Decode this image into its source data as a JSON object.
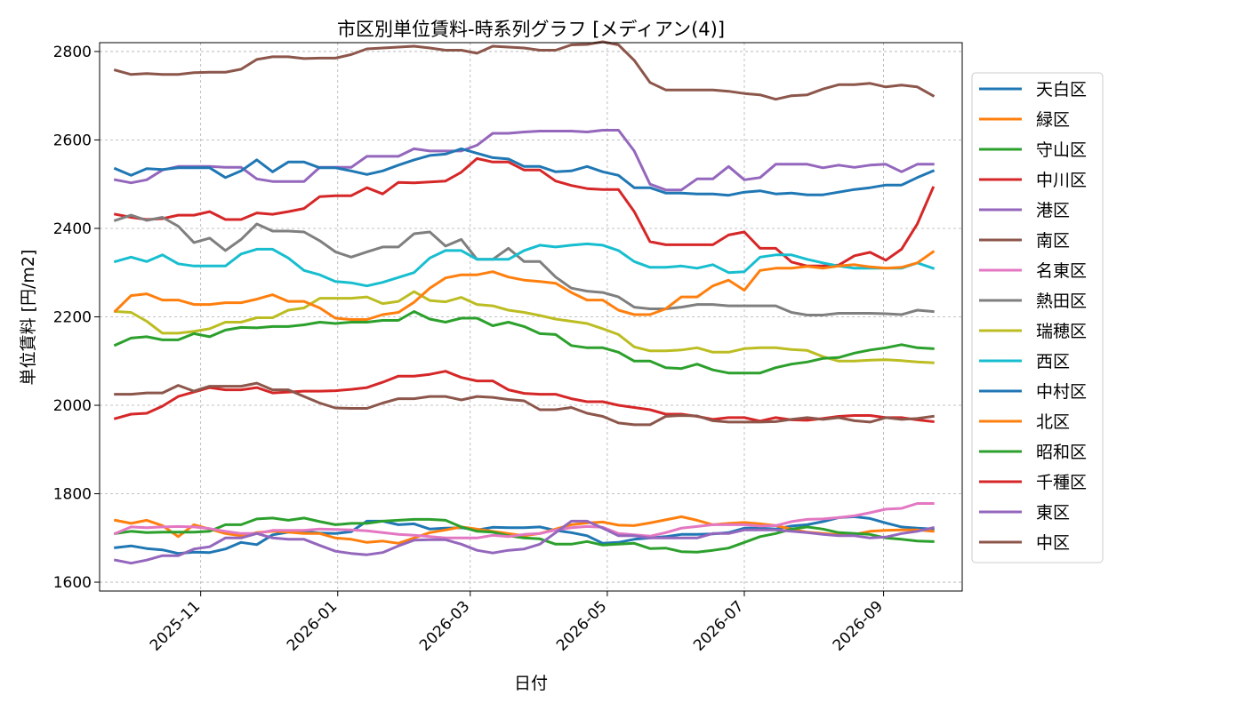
{
  "chart_data": {
    "type": "line",
    "title": "市区別単位賃料-時系列グラフ [メディアン(4)]",
    "xlabel": "日付",
    "ylabel": "単位賃料 [円/m2]",
    "ylim": [
      1580,
      2820
    ],
    "yticks": [
      1600,
      1800,
      2000,
      2200,
      2400,
      2600,
      2800
    ],
    "xlim": [
      "2025-09-17",
      "2026-10-06"
    ],
    "xticks": [
      "2025-11-01",
      "2026-01-01",
      "2026-03-01",
      "2026-05-01",
      "2026-07-01",
      "2026-09-01"
    ],
    "xtick_labels": [
      "2025-11",
      "2026-01",
      "2026-03",
      "2026-05",
      "2026-07",
      "2026-09"
    ],
    "grid": true,
    "legend": "outside-right",
    "x": [
      "2025-09-24",
      "2025-10-01",
      "2025-10-08",
      "2025-10-15",
      "2025-10-22",
      "2025-10-29",
      "2025-11-05",
      "2025-11-12",
      "2025-11-19",
      "2025-11-26",
      "2025-12-03",
      "2025-12-10",
      "2025-12-17",
      "2025-12-24",
      "2025-12-31",
      "2026-01-07",
      "2026-01-14",
      "2026-01-21",
      "2026-01-28",
      "2026-02-04",
      "2026-02-11",
      "2026-02-18",
      "2026-02-25",
      "2026-03-04",
      "2026-03-11",
      "2026-03-18",
      "2026-03-25",
      "2026-04-01",
      "2026-04-08",
      "2026-04-15",
      "2026-04-22",
      "2026-04-29",
      "2026-05-06",
      "2026-05-13",
      "2026-05-20",
      "2026-05-27",
      "2026-06-03",
      "2026-06-10",
      "2026-06-17",
      "2026-06-24",
      "2026-07-01",
      "2026-07-08",
      "2026-07-15",
      "2026-07-22",
      "2026-07-29",
      "2026-08-05",
      "2026-08-12",
      "2026-08-19",
      "2026-08-26",
      "2026-09-02",
      "2026-09-09",
      "2026-09-16",
      "2026-09-23"
    ],
    "series": [
      {
        "name": "天白区",
        "color": "#1f77b4",
        "values": [
          1678,
          1682,
          1676,
          1673,
          1665,
          1668,
          1667,
          1675,
          1690,
          1685,
          1707,
          1713,
          1714,
          1711,
          1710,
          1714,
          1738,
          1738,
          1730,
          1732,
          1720,
          1722,
          1723,
          1718,
          1724,
          1723,
          1723,
          1725,
          1717,
          1712,
          1705,
          1688,
          1690,
          1697,
          1700,
          1703,
          1708,
          1708,
          1709,
          1712,
          1722,
          1722,
          1720,
          1727,
          1730,
          1737,
          1746,
          1748,
          1744,
          1734,
          1725,
          1722,
          1720
        ]
      },
      {
        "name": "緑区",
        "color": "#ff7f0e",
        "values": [
          1740,
          1733,
          1740,
          1728,
          1703,
          1730,
          1720,
          1710,
          1705,
          1712,
          1715,
          1713,
          1710,
          1710,
          1700,
          1697,
          1690,
          1693,
          1688,
          1700,
          1712,
          1718,
          1725,
          1720,
          1715,
          1710,
          1705,
          1710,
          1720,
          1730,
          1734,
          1736,
          1729,
          1728,
          1734,
          1741,
          1748,
          1740,
          1730,
          1733,
          1735,
          1732,
          1728,
          1720,
          1713,
          1710,
          1707,
          1708,
          1715,
          1717,
          1718,
          1718,
          1715
        ]
      },
      {
        "name": "守山区",
        "color": "#2ca02c",
        "values": [
          1710,
          1715,
          1712,
          1713,
          1713,
          1713,
          1715,
          1730,
          1730,
          1743,
          1745,
          1740,
          1745,
          1737,
          1730,
          1733,
          1733,
          1738,
          1740,
          1742,
          1742,
          1740,
          1725,
          1715,
          1713,
          1705,
          1700,
          1698,
          1686,
          1686,
          1692,
          1684,
          1686,
          1688,
          1676,
          1677,
          1669,
          1668,
          1672,
          1677,
          1690,
          1703,
          1710,
          1720,
          1725,
          1720,
          1712,
          1710,
          1708,
          1700,
          1697,
          1693,
          1692
        ]
      },
      {
        "name": "中川区",
        "color": "#d62728",
        "values": [
          2432,
          2425,
          2420,
          2422,
          2430,
          2430,
          2438,
          2420,
          2420,
          2435,
          2432,
          2438,
          2445,
          2472,
          2474,
          2474,
          2492,
          2478,
          2504,
          2503,
          2505,
          2507,
          2527,
          2558,
          2550,
          2550,
          2532,
          2532,
          2507,
          2497,
          2490,
          2488,
          2488,
          2438,
          2370,
          2363,
          2363,
          2363,
          2363,
          2385,
          2392,
          2355,
          2355,
          2324,
          2315,
          2315,
          2317,
          2338,
          2346,
          2328,
          2353,
          2410,
          2492
        ]
      },
      {
        "name": "港区",
        "color": "#9467bd",
        "values": [
          2510,
          2503,
          2510,
          2532,
          2540,
          2540,
          2540,
          2538,
          2538,
          2512,
          2506,
          2506,
          2506,
          2538,
          2538,
          2538,
          2563,
          2563,
          2563,
          2580,
          2575,
          2575,
          2575,
          2588,
          2615,
          2615,
          2618,
          2620,
          2620,
          2620,
          2618,
          2622,
          2622,
          2575,
          2500,
          2487,
          2487,
          2512,
          2512,
          2540,
          2510,
          2515,
          2545,
          2545,
          2545,
          2537,
          2543,
          2538,
          2543,
          2545,
          2528,
          2545,
          2545
        ]
      },
      {
        "name": "南区",
        "color": "#8c564b",
        "values": [
          2758,
          2748,
          2750,
          2748,
          2748,
          2752,
          2753,
          2753,
          2760,
          2782,
          2788,
          2788,
          2784,
          2785,
          2785,
          2793,
          2806,
          2808,
          2810,
          2812,
          2808,
          2803,
          2803,
          2796,
          2812,
          2810,
          2808,
          2803,
          2803,
          2815,
          2816,
          2822,
          2815,
          2780,
          2730,
          2713,
          2713,
          2713,
          2713,
          2710,
          2705,
          2702,
          2692,
          2700,
          2702,
          2715,
          2725,
          2725,
          2728,
          2720,
          2724,
          2720,
          2700
        ]
      },
      {
        "name": "名東区",
        "color": "#e377c2",
        "values": [
          1710,
          1725,
          1723,
          1725,
          1726,
          1725,
          1721,
          1715,
          1710,
          1710,
          1717,
          1717,
          1717,
          1720,
          1719,
          1718,
          1716,
          1712,
          1708,
          1706,
          1703,
          1700,
          1700,
          1700,
          1706,
          1703,
          1708,
          1710,
          1718,
          1723,
          1726,
          1724,
          1710,
          1707,
          1704,
          1712,
          1722,
          1726,
          1730,
          1730,
          1730,
          1727,
          1728,
          1737,
          1742,
          1743,
          1746,
          1750,
          1757,
          1765,
          1767,
          1778,
          1778
        ]
      },
      {
        "name": "熱田区",
        "color": "#7f7f7f",
        "values": [
          2418,
          2430,
          2418,
          2425,
          2405,
          2368,
          2378,
          2350,
          2375,
          2410,
          2394,
          2394,
          2392,
          2372,
          2347,
          2335,
          2347,
          2358,
          2358,
          2388,
          2392,
          2360,
          2375,
          2330,
          2330,
          2355,
          2325,
          2325,
          2290,
          2265,
          2258,
          2255,
          2245,
          2222,
          2218,
          2218,
          2222,
          2228,
          2228,
          2225,
          2225,
          2225,
          2225,
          2210,
          2204,
          2204,
          2208,
          2208,
          2208,
          2207,
          2205,
          2215,
          2212
        ]
      },
      {
        "name": "瑞穂区",
        "color": "#bcbd22",
        "values": [
          2212,
          2210,
          2190,
          2163,
          2163,
          2167,
          2173,
          2188,
          2188,
          2198,
          2198,
          2215,
          2220,
          2242,
          2242,
          2242,
          2245,
          2230,
          2235,
          2257,
          2237,
          2234,
          2244,
          2228,
          2225,
          2215,
          2210,
          2203,
          2195,
          2190,
          2185,
          2173,
          2160,
          2132,
          2123,
          2123,
          2125,
          2130,
          2120,
          2120,
          2128,
          2130,
          2130,
          2126,
          2124,
          2110,
          2100,
          2100,
          2102,
          2103,
          2101,
          2098,
          2096
        ]
      },
      {
        "name": "西区",
        "color": "#17becf",
        "values": [
          2325,
          2335,
          2325,
          2340,
          2320,
          2315,
          2315,
          2315,
          2342,
          2353,
          2353,
          2333,
          2305,
          2295,
          2280,
          2277,
          2270,
          2278,
          2289,
          2300,
          2333,
          2350,
          2350,
          2330,
          2330,
          2330,
          2350,
          2362,
          2358,
          2362,
          2365,
          2362,
          2350,
          2325,
          2312,
          2312,
          2315,
          2310,
          2318,
          2300,
          2302,
          2335,
          2340,
          2340,
          2330,
          2322,
          2315,
          2310,
          2310,
          2310,
          2310,
          2322,
          2310
        ]
      },
      {
        "name": "中村区",
        "color": "#1f77b4",
        "values": [
          2535,
          2520,
          2535,
          2533,
          2537,
          2537,
          2537,
          2515,
          2530,
          2555,
          2528,
          2550,
          2550,
          2537,
          2537,
          2530,
          2522,
          2530,
          2543,
          2555,
          2565,
          2568,
          2580,
          2570,
          2560,
          2557,
          2540,
          2540,
          2528,
          2530,
          2540,
          2528,
          2520,
          2492,
          2492,
          2480,
          2480,
          2478,
          2478,
          2475,
          2482,
          2485,
          2478,
          2480,
          2476,
          2476,
          2482,
          2488,
          2492,
          2498,
          2498,
          2515,
          2530
        ]
      },
      {
        "name": "北区",
        "color": "#ff7f0e",
        "values": [
          2213,
          2248,
          2252,
          2238,
          2238,
          2228,
          2228,
          2232,
          2232,
          2240,
          2250,
          2235,
          2235,
          2220,
          2197,
          2194,
          2194,
          2205,
          2210,
          2233,
          2265,
          2288,
          2295,
          2295,
          2302,
          2290,
          2283,
          2280,
          2276,
          2255,
          2238,
          2238,
          2215,
          2205,
          2205,
          2218,
          2245,
          2245,
          2270,
          2283,
          2260,
          2305,
          2310,
          2310,
          2314,
          2310,
          2315,
          2318,
          2313,
          2310,
          2312,
          2322,
          2347
        ]
      },
      {
        "name": "昭和区",
        "color": "#2ca02c",
        "values": [
          2136,
          2152,
          2155,
          2148,
          2148,
          2162,
          2155,
          2170,
          2176,
          2175,
          2178,
          2178,
          2182,
          2188,
          2185,
          2188,
          2188,
          2192,
          2192,
          2212,
          2195,
          2188,
          2197,
          2197,
          2180,
          2188,
          2178,
          2162,
          2160,
          2135,
          2130,
          2130,
          2120,
          2100,
          2100,
          2085,
          2083,
          2093,
          2080,
          2073,
          2073,
          2073,
          2085,
          2093,
          2098,
          2106,
          2108,
          2118,
          2125,
          2130,
          2137,
          2130,
          2128
        ]
      },
      {
        "name": "千種区",
        "color": "#d62728",
        "values": [
          1970,
          1980,
          1982,
          1998,
          2020,
          2030,
          2040,
          2035,
          2035,
          2040,
          2028,
          2030,
          2032,
          2032,
          2033,
          2036,
          2040,
          2052,
          2066,
          2066,
          2070,
          2077,
          2063,
          2055,
          2055,
          2035,
          2027,
          2025,
          2025,
          2015,
          2008,
          2008,
          2000,
          1995,
          1990,
          1980,
          1980,
          1975,
          1968,
          1972,
          1972,
          1964,
          1972,
          1967,
          1966,
          1970,
          1975,
          1977,
          1977,
          1972,
          1972,
          1967,
          1963
        ]
      },
      {
        "name": "東区",
        "color": "#9467bd",
        "values": [
          1650,
          1643,
          1650,
          1660,
          1660,
          1675,
          1680,
          1700,
          1700,
          1710,
          1700,
          1697,
          1697,
          1683,
          1670,
          1665,
          1662,
          1667,
          1682,
          1695,
          1696,
          1696,
          1686,
          1672,
          1666,
          1672,
          1675,
          1686,
          1712,
          1738,
          1738,
          1722,
          1705,
          1705,
          1700,
          1700,
          1700,
          1700,
          1710,
          1710,
          1718,
          1718,
          1718,
          1715,
          1712,
          1708,
          1705,
          1705,
          1700,
          1702,
          1710,
          1715,
          1723
        ]
      },
      {
        "name": "中区",
        "color": "#8c564b",
        "values": [
          2025,
          2025,
          2028,
          2028,
          2045,
          2032,
          2043,
          2043,
          2043,
          2050,
          2035,
          2035,
          2020,
          2005,
          1994,
          1993,
          1993,
          2005,
          2015,
          2015,
          2020,
          2020,
          2012,
          2020,
          2018,
          2013,
          2010,
          1990,
          1990,
          1995,
          1982,
          1975,
          1960,
          1956,
          1956,
          1975,
          1977,
          1976,
          1965,
          1962,
          1962,
          1962,
          1963,
          1968,
          1972,
          1968,
          1972,
          1965,
          1962,
          1972,
          1968,
          1970,
          1975
        ]
      }
    ]
  }
}
